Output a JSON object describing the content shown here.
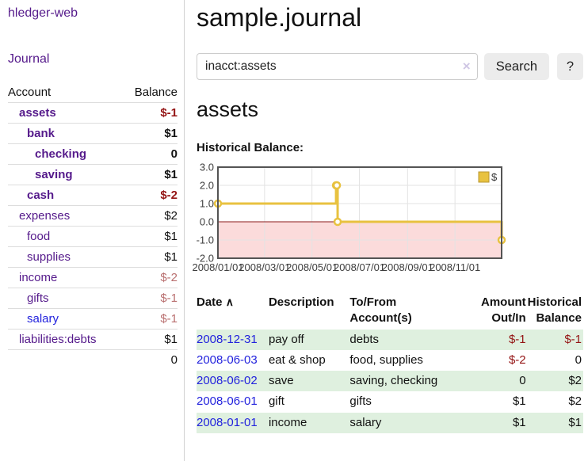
{
  "colors": {
    "purple_link": "#551a8b",
    "blue_link": "#2222dd",
    "neg_strong": "#941414",
    "neg_soft": "#b96f6f",
    "row_green": "#dff0df",
    "chart_line": "#e8c240",
    "chart_negative_fill": "#fbdbdb",
    "chart_zero_line": "#8b1a1a",
    "chart_border": "#545454",
    "grid_line": "#e3e3e3"
  },
  "sidebar": {
    "app_title": "hledger-web",
    "journal_link": "Journal",
    "table": {
      "headers": {
        "account": "Account",
        "balance": "Balance"
      },
      "rows": [
        {
          "name": "assets",
          "depth": 1,
          "bold": true,
          "balance": "$-1",
          "neg": "strong"
        },
        {
          "name": "bank",
          "depth": 2,
          "bold": true,
          "balance": "$1"
        },
        {
          "name": "checking",
          "depth": 3,
          "bold": true,
          "balance": "0"
        },
        {
          "name": "saving",
          "depth": 3,
          "bold": true,
          "balance": "$1"
        },
        {
          "name": "cash",
          "depth": 2,
          "bold": true,
          "balance": "$-2",
          "neg": "strong"
        },
        {
          "name": "expenses",
          "depth": 1,
          "bold": false,
          "balance": "$2"
        },
        {
          "name": "food",
          "depth": 2,
          "bold": false,
          "balance": "$1"
        },
        {
          "name": "supplies",
          "depth": 2,
          "bold": false,
          "balance": "$1"
        },
        {
          "name": "income",
          "depth": 1,
          "bold": false,
          "balance": "$-2",
          "neg": "soft"
        },
        {
          "name": "gifts",
          "depth": 2,
          "bold": false,
          "balance": "$-1",
          "neg": "soft"
        },
        {
          "name": "salary",
          "depth": 2,
          "bold": false,
          "balance": "$-1",
          "neg": "soft",
          "blue": true
        },
        {
          "name": "liabilities:debts",
          "depth": 1,
          "bold": false,
          "balance": "$1"
        }
      ],
      "total": "0"
    }
  },
  "main": {
    "page_title": "sample.journal",
    "search": {
      "value": "inacct:assets",
      "clear_icon": "×",
      "button_label": "Search",
      "help_label": "?"
    },
    "account_heading": "assets",
    "chart_label": "Historical Balance:"
  },
  "chart_data": {
    "type": "line",
    "variant": "step",
    "title": "Historical Balance",
    "series": [
      {
        "name": "$",
        "color": "#e8c240",
        "points": [
          [
            "2008-01-01",
            1.0
          ],
          [
            "2008-06-01",
            2.0
          ],
          [
            "2008-06-02",
            2.0
          ],
          [
            "2008-06-03",
            0.0
          ],
          [
            "2008-12-31",
            -1.0
          ]
        ]
      }
    ],
    "x_ticks": [
      "2008/01/01",
      "2008/03/01",
      "2008/05/01",
      "2008/07/01",
      "2008/09/01",
      "2008/11/01"
    ],
    "y_ticks": [
      3.0,
      2.0,
      1.0,
      0.0,
      -1.0,
      -2.0
    ],
    "ylim": [
      -2.0,
      3.0
    ],
    "x_range": [
      "2008-01-01",
      "2008-12-31"
    ],
    "grid": true,
    "legend": {
      "position": "top-right",
      "label": "$"
    },
    "negative_region_shaded": true
  },
  "register": {
    "headers": {
      "date": "Date",
      "sort_arrow": "∧",
      "description": "Description",
      "accounts": "To/From Account(s)",
      "amount": "Amount Out/In",
      "balance": "Historical Balance"
    },
    "rows": [
      {
        "date": "2008-12-31",
        "description": "pay off",
        "accounts": "debts",
        "amount": "$-1",
        "amount_neg": true,
        "balance": "$-1",
        "balance_neg": true,
        "green": true
      },
      {
        "date": "2008-06-03",
        "description": "eat & shop",
        "accounts": "food, supplies",
        "amount": "$-2",
        "amount_neg": true,
        "balance": "0",
        "balance_neg": false,
        "green": false
      },
      {
        "date": "2008-06-02",
        "description": "save",
        "accounts": "saving, checking",
        "amount": "0",
        "amount_neg": false,
        "balance": "$2",
        "balance_neg": false,
        "green": true
      },
      {
        "date": "2008-06-01",
        "description": "gift",
        "accounts": "gifts",
        "amount": "$1",
        "amount_neg": false,
        "balance": "$2",
        "balance_neg": false,
        "green": false
      },
      {
        "date": "2008-01-01",
        "description": "income",
        "accounts": "salary",
        "amount": "$1",
        "amount_neg": false,
        "balance": "$1",
        "balance_neg": false,
        "green": true
      }
    ]
  }
}
